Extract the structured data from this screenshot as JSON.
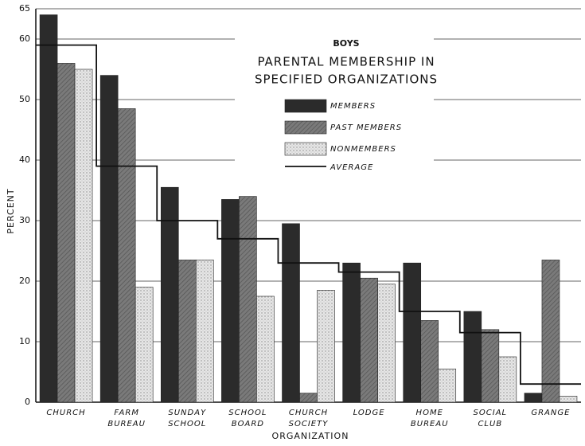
{
  "chart_data": {
    "type": "bar",
    "title": [
      "PARENTAL MEMBERSHIP IN",
      "SPECIFIED ORGANIZATIONS"
    ],
    "annotation": "BOYS",
    "x_label": "ORGANIZATION",
    "y_label": "PERCENT",
    "categories": [
      [
        "CHURCH"
      ],
      [
        "FARM",
        "BUREAU"
      ],
      [
        "SUNDAY",
        "SCHOOL"
      ],
      [
        "SCHOOL",
        "BOARD"
      ],
      [
        "CHURCH",
        "SOCIETY"
      ],
      [
        "LODGE"
      ],
      [
        "HOME",
        "BUREAU"
      ],
      [
        "SOCIAL",
        "CLUB"
      ],
      [
        "GRANGE"
      ]
    ],
    "series": [
      {
        "name": "MEMBERS",
        "kind": "bar",
        "color": "#2b2b2b",
        "values": [
          64,
          54,
          35.5,
          33.5,
          29.5,
          23,
          23,
          15,
          1.5
        ]
      },
      {
        "name": "PAST MEMBERS",
        "kind": "bar",
        "color": "#7a7a7a",
        "values": [
          56,
          48.5,
          23.5,
          34,
          1.5,
          20.5,
          13.5,
          12,
          23.5
        ]
      },
      {
        "name": "NONMEMBERS",
        "kind": "bar",
        "color": "#dcdcdc",
        "values": [
          55,
          19,
          23.5,
          17.5,
          18.5,
          19.5,
          5.5,
          7.5,
          1
        ]
      },
      {
        "name": "AVERAGE",
        "kind": "step",
        "color": "#111111",
        "values": [
          59,
          39,
          30,
          27,
          23,
          21.5,
          15,
          11.5,
          3
        ]
      }
    ],
    "ylim": [
      0,
      65
    ],
    "yticks": [
      0,
      10,
      20,
      30,
      40,
      50,
      60,
      65
    ],
    "grid": true
  }
}
